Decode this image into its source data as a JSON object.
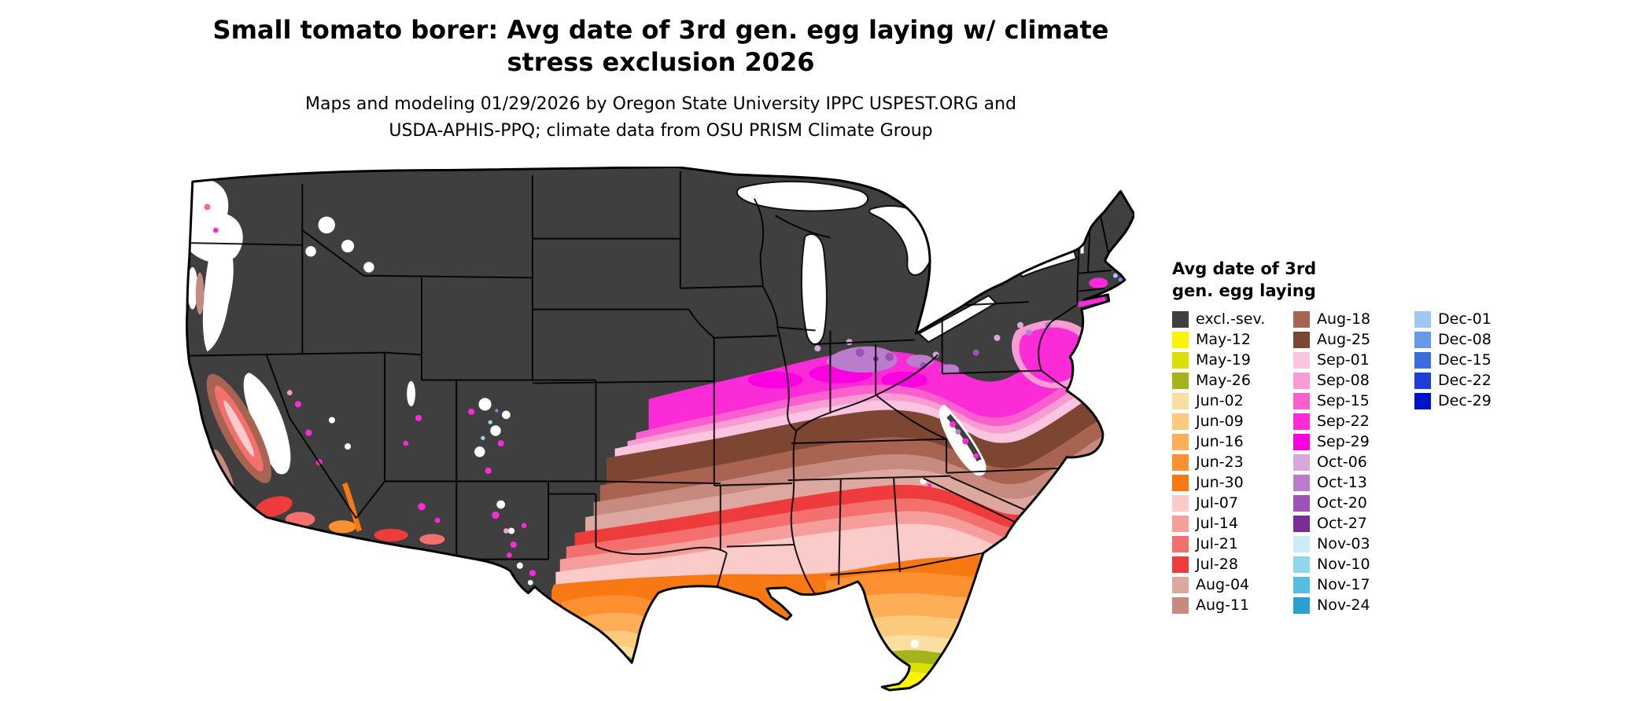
{
  "title": {
    "line1": "Small tomato borer: Avg date of 3rd gen. egg laying w/ climate",
    "line2": "stress exclusion 2026"
  },
  "subtitle": {
    "line1": "Maps and modeling 01/29/2026 by Oregon State University IPPC USPEST.ORG and",
    "line2": "USDA-APHIS-PPQ; climate data from OSU PRISM Climate Group"
  },
  "legend": {
    "title_line1": "Avg date of 3rd",
    "title_line2": "gen. egg laying",
    "columns": [
      [
        {
          "label": "excl.-sev.",
          "color": "#3f3f3f"
        },
        {
          "label": "May-12",
          "color": "#fcf400"
        },
        {
          "label": "May-19",
          "color": "#dce000"
        },
        {
          "label": "May-26",
          "color": "#a6b41c"
        },
        {
          "label": "Jun-02",
          "color": "#fadfa0"
        },
        {
          "label": "Jun-09",
          "color": "#fcca7c"
        },
        {
          "label": "Jun-16",
          "color": "#fdae56"
        },
        {
          "label": "Jun-23",
          "color": "#fd9030"
        },
        {
          "label": "Jun-30",
          "color": "#f87814"
        },
        {
          "label": "Jul-07",
          "color": "#facbc8"
        },
        {
          "label": "Jul-14",
          "color": "#f59e9c"
        },
        {
          "label": "Jul-21",
          "color": "#f4706e"
        },
        {
          "label": "Jul-28",
          "color": "#ee3b3b"
        },
        {
          "label": "Aug-04",
          "color": "#dca8a0"
        },
        {
          "label": "Aug-11",
          "color": "#c68a7e"
        }
      ],
      [
        {
          "label": "Aug-18",
          "color": "#a86450"
        },
        {
          "label": "Aug-25",
          "color": "#7c4632"
        },
        {
          "label": "Sep-01",
          "color": "#fbc4e0"
        },
        {
          "label": "Sep-08",
          "color": "#fa9cd4"
        },
        {
          "label": "Sep-15",
          "color": "#fa5fd0"
        },
        {
          "label": "Sep-22",
          "color": "#fb2bd8"
        },
        {
          "label": "Sep-29",
          "color": "#fa00e0"
        },
        {
          "label": "Oct-06",
          "color": "#d9a6de"
        },
        {
          "label": "Oct-13",
          "color": "#bc7ccc"
        },
        {
          "label": "Oct-20",
          "color": "#9d53b5"
        },
        {
          "label": "Oct-27",
          "color": "#7b2d96"
        },
        {
          "label": "Nov-03",
          "color": "#c9eef7"
        },
        {
          "label": "Nov-10",
          "color": "#8ed8ee"
        },
        {
          "label": "Nov-17",
          "color": "#55bee2"
        },
        {
          "label": "Nov-24",
          "color": "#28a0d0"
        }
      ],
      [
        {
          "label": "Dec-01",
          "color": "#9cc8f2"
        },
        {
          "label": "Dec-08",
          "color": "#6699e8"
        },
        {
          "label": "Dec-15",
          "color": "#3a6ee0"
        },
        {
          "label": "Dec-22",
          "color": "#1b3fd6"
        },
        {
          "label": "Dec-29",
          "color": "#0011cc"
        }
      ]
    ]
  }
}
